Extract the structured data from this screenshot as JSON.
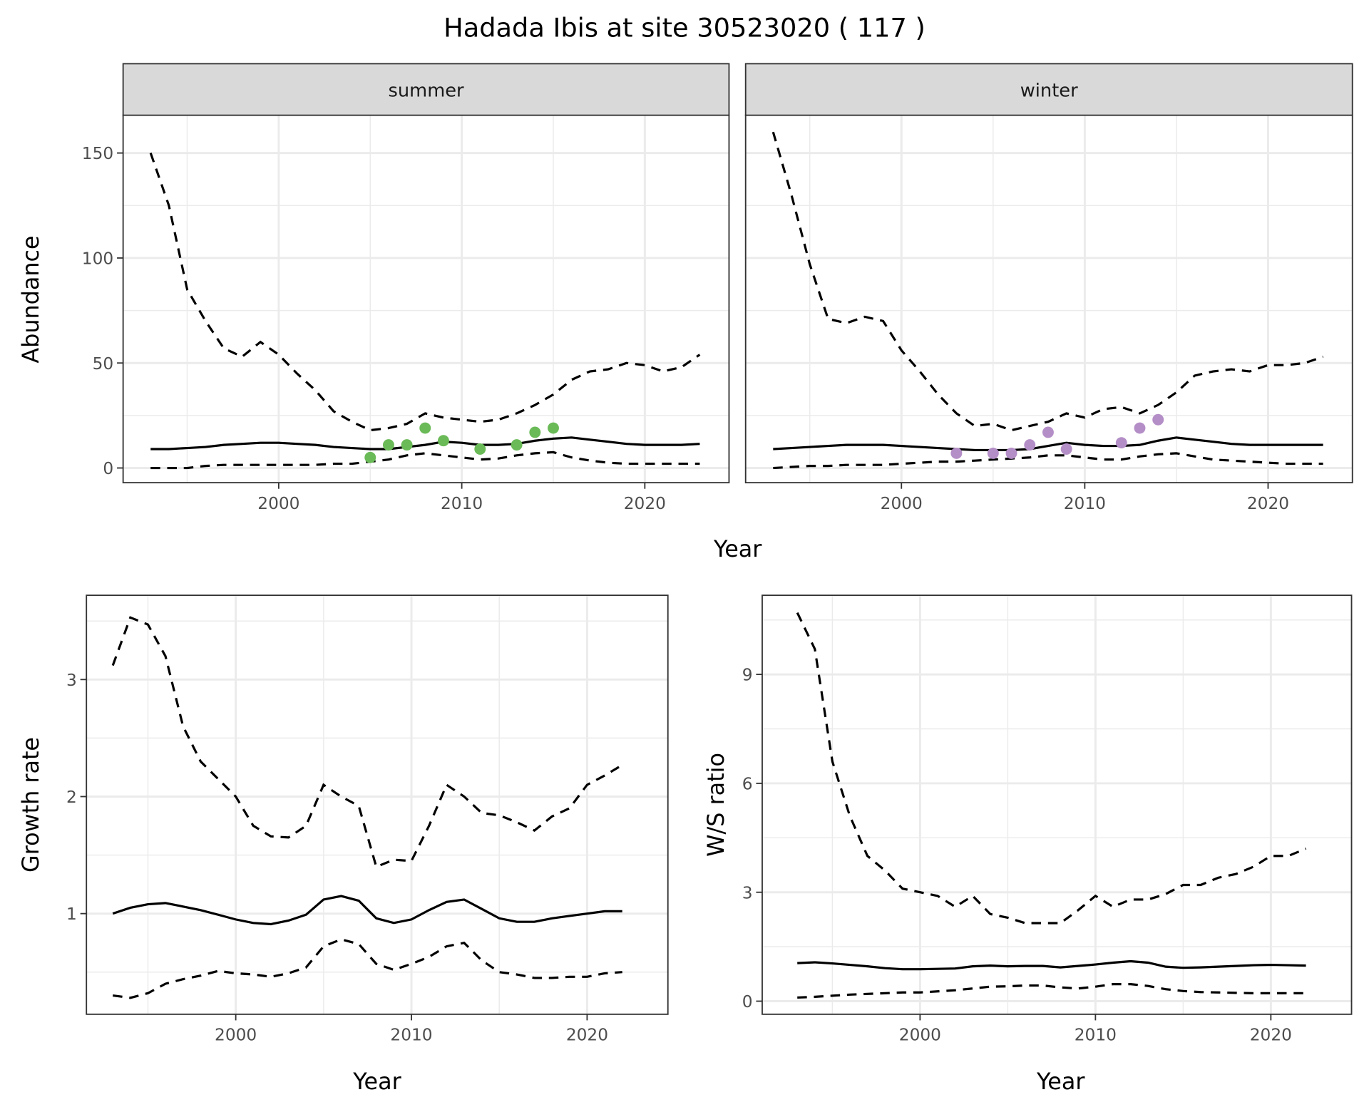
{
  "title": "Hadada Ibis at site 30523020 ( 117 )",
  "chart_data": [
    {
      "type": "line",
      "name": "abundance",
      "xlabel": "Year",
      "ylabel": "Abundance",
      "xlim": [
        1991.5,
        2024.6
      ],
      "ylim": [
        -7,
        168
      ],
      "xticks": [
        "2000",
        "2010",
        "2020"
      ],
      "yticks": [
        "0",
        "50",
        "100",
        "150"
      ],
      "grid": true,
      "point_colors": {
        "summer": "#6aba57",
        "winter": "#b48ec7"
      },
      "facets": [
        {
          "label": "summer",
          "x": [
            1993,
            1994,
            1995,
            1996,
            1997,
            1998,
            1999,
            2000,
            2001,
            2002,
            2003,
            2004,
            2005,
            2006,
            2007,
            2008,
            2009,
            2010,
            2011,
            2012,
            2013,
            2014,
            2015,
            2016,
            2017,
            2018,
            2019,
            2020,
            2021,
            2022,
            2023
          ],
          "mean": [
            9,
            9,
            9.5,
            10,
            11,
            11.5,
            12,
            12,
            11.5,
            11,
            10,
            9.5,
            9,
            9,
            10,
            11,
            12.5,
            12,
            11,
            11,
            11.5,
            13,
            14,
            14.5,
            13.5,
            12.5,
            11.5,
            11,
            11,
            11,
            11.5
          ],
          "upper": [
            150,
            125,
            85,
            70,
            57,
            53,
            60,
            54,
            45,
            37,
            27,
            22,
            18,
            19,
            21,
            26,
            24,
            23,
            22,
            23,
            26,
            30,
            35,
            42,
            46,
            47,
            50,
            49,
            46,
            48,
            54
          ],
          "lower": [
            0,
            0,
            0,
            1,
            1.5,
            1.5,
            1.5,
            1.5,
            1.5,
            1.5,
            2,
            2,
            3,
            4,
            6,
            7,
            6,
            5,
            4,
            4.5,
            6,
            7,
            7.5,
            5,
            3.5,
            2.5,
            2,
            2,
            2,
            2,
            2
          ],
          "points": {
            "x": [
              2005,
              2006,
              2007,
              2008,
              2009,
              2011,
              2013,
              2014,
              2015
            ],
            "y": [
              5,
              11,
              11,
              19,
              13,
              9,
              11,
              17,
              19
            ]
          }
        },
        {
          "label": "winter",
          "x": [
            1993,
            1994,
            1995,
            1996,
            1997,
            1998,
            1999,
            2000,
            2001,
            2002,
            2003,
            2004,
            2005,
            2006,
            2007,
            2008,
            2009,
            2010,
            2011,
            2012,
            2013,
            2014,
            2015,
            2016,
            2017,
            2018,
            2019,
            2020,
            2021,
            2022,
            2023
          ],
          "mean": [
            9,
            9.5,
            10,
            10.5,
            11,
            11,
            11,
            10.5,
            10,
            9.5,
            9,
            8.5,
            8.5,
            8.5,
            9,
            10.5,
            12,
            11,
            10.5,
            10.5,
            11,
            13,
            14.5,
            13.5,
            12.5,
            11.5,
            11,
            11,
            11,
            11,
            11
          ],
          "upper": [
            160,
            130,
            97,
            71,
            69,
            72,
            70,
            56,
            46,
            35,
            26,
            20,
            21,
            18,
            20,
            22,
            26,
            24,
            28,
            29,
            26,
            30,
            36,
            44,
            46,
            47,
            46,
            49,
            49,
            50,
            53
          ],
          "lower": [
            0,
            0.5,
            1,
            1,
            1.5,
            1.5,
            1.5,
            2,
            2.5,
            3,
            3,
            3.5,
            4,
            4.5,
            5,
            6,
            6,
            5,
            4,
            4,
            5.5,
            6.5,
            7,
            5.5,
            4,
            3.5,
            3,
            2.5,
            2,
            2,
            2
          ],
          "points": {
            "x": [
              2003,
              2005,
              2006,
              2007,
              2008,
              2009,
              2012,
              2013,
              2014
            ],
            "y": [
              7,
              7,
              7,
              11,
              17,
              9,
              12,
              19,
              23
            ]
          }
        }
      ]
    },
    {
      "type": "line",
      "name": "growth-rate",
      "xlabel": "Year",
      "ylabel": "Growth rate",
      "xlim": [
        1991.5,
        2024.6
      ],
      "ylim": [
        0.14,
        3.72
      ],
      "xticks": [
        "2000",
        "2010",
        "2020"
      ],
      "yticks": [
        "1",
        "2",
        "3"
      ],
      "grid": true,
      "x": [
        1993,
        1994,
        1995,
        1996,
        1997,
        1998,
        1999,
        2000,
        2001,
        2002,
        2003,
        2004,
        2005,
        2006,
        2007,
        2008,
        2009,
        2010,
        2011,
        2012,
        2013,
        2014,
        2015,
        2016,
        2017,
        2018,
        2019,
        2020,
        2021,
        2022
      ],
      "mean": [
        1.0,
        1.05,
        1.08,
        1.09,
        1.06,
        1.03,
        0.99,
        0.95,
        0.92,
        0.91,
        0.94,
        0.99,
        1.12,
        1.15,
        1.11,
        0.96,
        0.92,
        0.95,
        1.03,
        1.1,
        1.12,
        1.04,
        0.96,
        0.93,
        0.93,
        0.96,
        0.98,
        1.0,
        1.02,
        1.02
      ],
      "upper": [
        3.12,
        3.53,
        3.47,
        3.2,
        2.6,
        2.3,
        2.15,
        2.0,
        1.75,
        1.66,
        1.65,
        1.75,
        2.1,
        2.0,
        1.92,
        1.4,
        1.46,
        1.45,
        1.75,
        2.1,
        2.0,
        1.86,
        1.84,
        1.78,
        1.71,
        1.83,
        1.9,
        2.1,
        2.18,
        2.27
      ],
      "lower": [
        0.3,
        0.28,
        0.32,
        0.4,
        0.44,
        0.47,
        0.51,
        0.49,
        0.48,
        0.46,
        0.49,
        0.54,
        0.72,
        0.78,
        0.74,
        0.57,
        0.52,
        0.57,
        0.63,
        0.72,
        0.75,
        0.6,
        0.5,
        0.48,
        0.45,
        0.45,
        0.46,
        0.46,
        0.49,
        0.5
      ]
    },
    {
      "type": "line",
      "name": "ws-ratio",
      "xlabel": "Year",
      "ylabel": "W/S ratio",
      "xlim": [
        1991,
        2024.6
      ],
      "ylim": [
        -0.36,
        11.18
      ],
      "xticks": [
        "2000",
        "2010",
        "2020"
      ],
      "yticks": [
        "0",
        "3",
        "6",
        "9"
      ],
      "grid": true,
      "x": [
        1993,
        1994,
        1995,
        1996,
        1997,
        1998,
        1999,
        2000,
        2001,
        2002,
        2003,
        2004,
        2005,
        2006,
        2007,
        2008,
        2009,
        2010,
        2011,
        2012,
        2013,
        2014,
        2015,
        2016,
        2017,
        2018,
        2019,
        2020,
        2021,
        2022
      ],
      "mean": [
        1.05,
        1.07,
        1.04,
        1.0,
        0.96,
        0.91,
        0.88,
        0.88,
        0.89,
        0.9,
        0.96,
        0.98,
        0.96,
        0.97,
        0.97,
        0.93,
        0.97,
        1.01,
        1.06,
        1.1,
        1.06,
        0.95,
        0.92,
        0.93,
        0.95,
        0.97,
        0.99,
        1.0,
        0.99,
        0.98
      ],
      "upper": [
        10.7,
        9.7,
        6.6,
        5.1,
        4.0,
        3.6,
        3.1,
        3.0,
        2.9,
        2.6,
        2.9,
        2.4,
        2.3,
        2.15,
        2.15,
        2.15,
        2.5,
        2.9,
        2.6,
        2.8,
        2.8,
        2.95,
        3.2,
        3.2,
        3.4,
        3.5,
        3.7,
        4.0,
        4.0,
        4.2
      ],
      "lower": [
        0.1,
        0.12,
        0.15,
        0.18,
        0.2,
        0.22,
        0.24,
        0.24,
        0.27,
        0.3,
        0.35,
        0.4,
        0.41,
        0.43,
        0.43,
        0.38,
        0.35,
        0.4,
        0.47,
        0.47,
        0.42,
        0.33,
        0.28,
        0.25,
        0.24,
        0.23,
        0.22,
        0.22,
        0.22,
        0.22
      ]
    }
  ]
}
